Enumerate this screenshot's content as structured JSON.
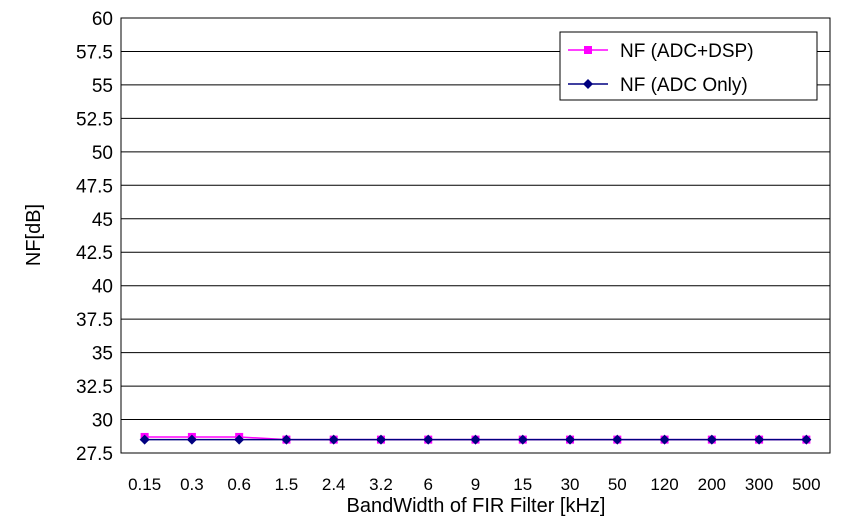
{
  "chart_data": {
    "type": "line",
    "xlabel": "BandWidth of FIR Filter [kHz]",
    "ylabel": "NF[dB]",
    "categories": [
      "0.15",
      "0.3",
      "0.6",
      "1.5",
      "2.4",
      "3.2",
      "6",
      "9",
      "15",
      "30",
      "50",
      "120",
      "200",
      "300",
      "500"
    ],
    "ylim": [
      27.5,
      60
    ],
    "yticks": [
      "60",
      "57.5",
      "55",
      "52.5",
      "50",
      "47.5",
      "45",
      "42.5",
      "40",
      "37.5",
      "35",
      "32.5",
      "30",
      "27.5"
    ],
    "grid": true,
    "legend_position": "top-right",
    "series": [
      {
        "name": "NF (ADC+DSP)",
        "color": "#ff00ff",
        "marker": "square",
        "values": [
          28.7,
          28.7,
          28.7,
          28.5,
          28.5,
          28.5,
          28.5,
          28.5,
          28.5,
          28.5,
          28.5,
          28.5,
          28.5,
          28.5,
          28.5
        ]
      },
      {
        "name": "NF (ADC Only)",
        "color": "#000080",
        "marker": "diamond",
        "values": [
          28.5,
          28.5,
          28.5,
          28.5,
          28.5,
          28.5,
          28.5,
          28.5,
          28.5,
          28.5,
          28.5,
          28.5,
          28.5,
          28.5,
          28.5
        ]
      }
    ]
  }
}
